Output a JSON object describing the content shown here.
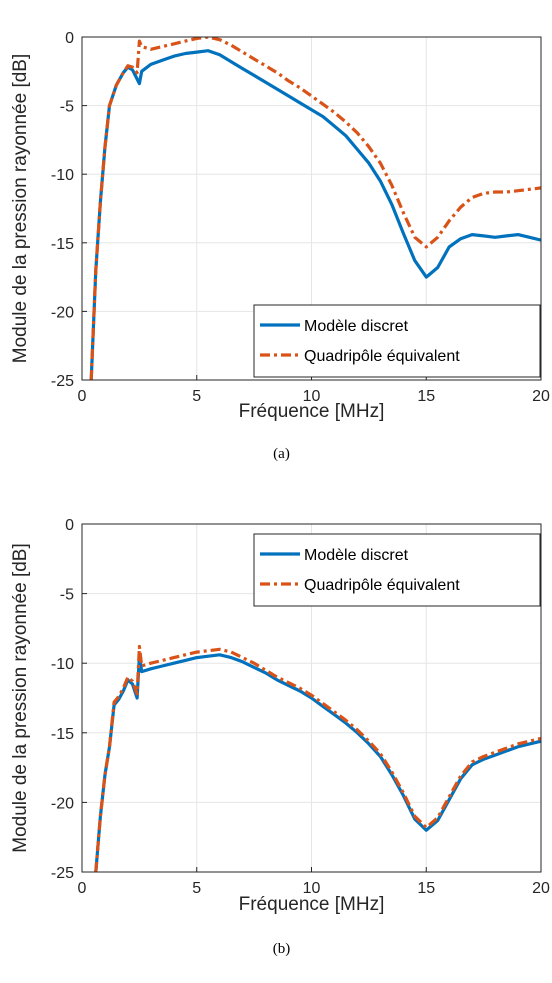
{
  "colors": {
    "series1": "#0072BD",
    "series2": "#D95319",
    "grid": "#e6e6e6",
    "axis": "#262626"
  },
  "chart_data": [
    {
      "type": "line",
      "caption": "(a)",
      "xlabel": "Fréquence [MHz]",
      "ylabel": "Module de la pression rayonnée [dB]",
      "xlim": [
        0,
        20
      ],
      "ylim": [
        -25,
        0
      ],
      "xticks": [
        0,
        5,
        10,
        15,
        20
      ],
      "xtick_labels": [
        "0",
        "5",
        "10",
        "15",
        "20"
      ],
      "yticks": [
        0,
        -5,
        -10,
        -15,
        -20,
        -25
      ],
      "ytick_labels": [
        "0",
        "-5",
        "-10",
        "-15",
        "-20",
        "-25"
      ],
      "grid": true,
      "legend_position": "bottom-right",
      "series": [
        {
          "name": "Modèle discret",
          "style": "solid",
          "x": [
            0.4,
            0.6,
            0.8,
            1.0,
            1.2,
            1.5,
            1.8,
            2.0,
            2.2,
            2.5,
            2.6,
            3.0,
            3.5,
            4.0,
            4.5,
            5.0,
            5.5,
            6.0,
            6.5,
            7.0,
            7.5,
            8.0,
            8.5,
            9.0,
            9.5,
            10.0,
            10.5,
            11.0,
            11.5,
            12.0,
            12.5,
            13.0,
            13.5,
            14.0,
            14.5,
            15.0,
            15.5,
            16.0,
            16.5,
            17.0,
            17.5,
            18.0,
            18.5,
            19.0,
            19.5,
            20.0
          ],
          "values": [
            -25,
            -17,
            -12,
            -8,
            -5,
            -3.5,
            -2.6,
            -2.2,
            -2.4,
            -3.4,
            -2.5,
            -2.0,
            -1.7,
            -1.4,
            -1.2,
            -1.1,
            -1.0,
            -1.3,
            -1.8,
            -2.3,
            -2.8,
            -3.3,
            -3.8,
            -4.3,
            -4.8,
            -5.3,
            -5.8,
            -6.5,
            -7.2,
            -8.2,
            -9.2,
            -10.5,
            -12.2,
            -14.3,
            -16.3,
            -17.5,
            -16.8,
            -15.3,
            -14.7,
            -14.4,
            -14.5,
            -14.6,
            -14.5,
            -14.4,
            -14.6,
            -14.8
          ]
        },
        {
          "name": "Quadripôle équivalent",
          "style": "dashdot",
          "x": [
            0.4,
            0.6,
            0.8,
            1.0,
            1.2,
            1.5,
            1.8,
            2.0,
            2.2,
            2.4,
            2.5,
            2.6,
            3.0,
            3.5,
            4.0,
            4.5,
            5.0,
            5.5,
            6.0,
            6.5,
            7.0,
            7.5,
            8.0,
            8.5,
            9.0,
            9.5,
            10.0,
            10.5,
            11.0,
            11.5,
            12.0,
            12.5,
            13.0,
            13.5,
            14.0,
            14.5,
            15.0,
            15.5,
            16.0,
            16.5,
            17.0,
            17.5,
            18.0,
            18.5,
            19.0,
            19.5,
            20.0
          ],
          "values": [
            -25,
            -17,
            -12,
            -8,
            -5,
            -3.5,
            -2.6,
            -2.1,
            -2.2,
            -2.6,
            -0.3,
            -0.7,
            -0.9,
            -0.7,
            -0.5,
            -0.3,
            -0.1,
            0.0,
            -0.2,
            -0.6,
            -1.1,
            -1.6,
            -2.1,
            -2.6,
            -3.2,
            -3.7,
            -4.3,
            -4.9,
            -5.5,
            -6.2,
            -7.0,
            -8.0,
            -9.2,
            -10.8,
            -12.8,
            -14.6,
            -15.3,
            -14.6,
            -13.4,
            -12.4,
            -11.7,
            -11.4,
            -11.3,
            -11.3,
            -11.2,
            -11.1,
            -11.0
          ]
        }
      ]
    },
    {
      "type": "line",
      "caption": "(b)",
      "xlabel": "Fréquence [MHz]",
      "ylabel": "Module de la pression rayonnée [dB]",
      "xlim": [
        0,
        20
      ],
      "ylim": [
        -25,
        0
      ],
      "xticks": [
        0,
        5,
        10,
        15,
        20
      ],
      "xtick_labels": [
        "0",
        "5",
        "10",
        "15",
        "20"
      ],
      "yticks": [
        0,
        -5,
        -10,
        -15,
        -20,
        -25
      ],
      "ytick_labels": [
        "0",
        "-5",
        "-10",
        "-15",
        "-20",
        "-25"
      ],
      "grid": true,
      "legend_position": "top-right",
      "series": [
        {
          "name": "Modèle discret",
          "style": "solid",
          "x": [
            0.6,
            0.8,
            1.0,
            1.2,
            1.4,
            1.6,
            1.8,
            2.0,
            2.2,
            2.4,
            2.5,
            2.6,
            3.0,
            3.5,
            4.0,
            4.5,
            5.0,
            5.5,
            6.0,
            6.5,
            7.0,
            7.5,
            8.0,
            8.5,
            9.0,
            9.5,
            10.0,
            10.5,
            11.0,
            11.5,
            12.0,
            12.5,
            13.0,
            13.5,
            14.0,
            14.5,
            15.0,
            15.5,
            16.0,
            16.5,
            17.0,
            17.5,
            18.0,
            18.5,
            19.0,
            19.5,
            20.0
          ],
          "values": [
            -25,
            -21,
            -18,
            -16,
            -13,
            -12.6,
            -12.0,
            -11.2,
            -11.5,
            -12.5,
            -9.5,
            -10.6,
            -10.4,
            -10.2,
            -10.0,
            -9.8,
            -9.6,
            -9.5,
            -9.4,
            -9.6,
            -9.9,
            -10.3,
            -10.7,
            -11.2,
            -11.6,
            -12.0,
            -12.5,
            -13.1,
            -13.7,
            -14.3,
            -15.0,
            -15.8,
            -16.7,
            -18.0,
            -19.5,
            -21.2,
            -22.0,
            -21.3,
            -19.8,
            -18.3,
            -17.3,
            -16.9,
            -16.6,
            -16.3,
            -16.0,
            -15.8,
            -15.6
          ]
        },
        {
          "name": "Quadripôle équivalent",
          "style": "dashdot",
          "x": [
            0.6,
            0.8,
            1.0,
            1.2,
            1.4,
            1.6,
            1.8,
            2.0,
            2.2,
            2.4,
            2.5,
            2.6,
            3.0,
            3.5,
            4.0,
            4.5,
            5.0,
            5.5,
            6.0,
            6.5,
            7.0,
            7.5,
            8.0,
            8.5,
            9.0,
            9.5,
            10.0,
            10.5,
            11.0,
            11.5,
            12.0,
            12.5,
            13.0,
            13.5,
            14.0,
            14.5,
            15.0,
            15.5,
            16.0,
            16.5,
            17.0,
            17.5,
            18.0,
            18.5,
            19.0,
            19.5,
            20.0
          ],
          "values": [
            -25,
            -21,
            -18,
            -16,
            -12.8,
            -12.4,
            -11.8,
            -11.0,
            -11.3,
            -12.2,
            -8.8,
            -10.2,
            -10.0,
            -9.8,
            -9.6,
            -9.4,
            -9.2,
            -9.1,
            -9.0,
            -9.2,
            -9.6,
            -10.0,
            -10.5,
            -11.0,
            -11.4,
            -11.8,
            -12.3,
            -12.9,
            -13.5,
            -14.1,
            -14.8,
            -15.6,
            -16.5,
            -17.8,
            -19.3,
            -21.0,
            -21.8,
            -21.1,
            -19.6,
            -18.1,
            -17.1,
            -16.7,
            -16.4,
            -16.1,
            -15.8,
            -15.6,
            -15.4
          ]
        }
      ]
    }
  ]
}
